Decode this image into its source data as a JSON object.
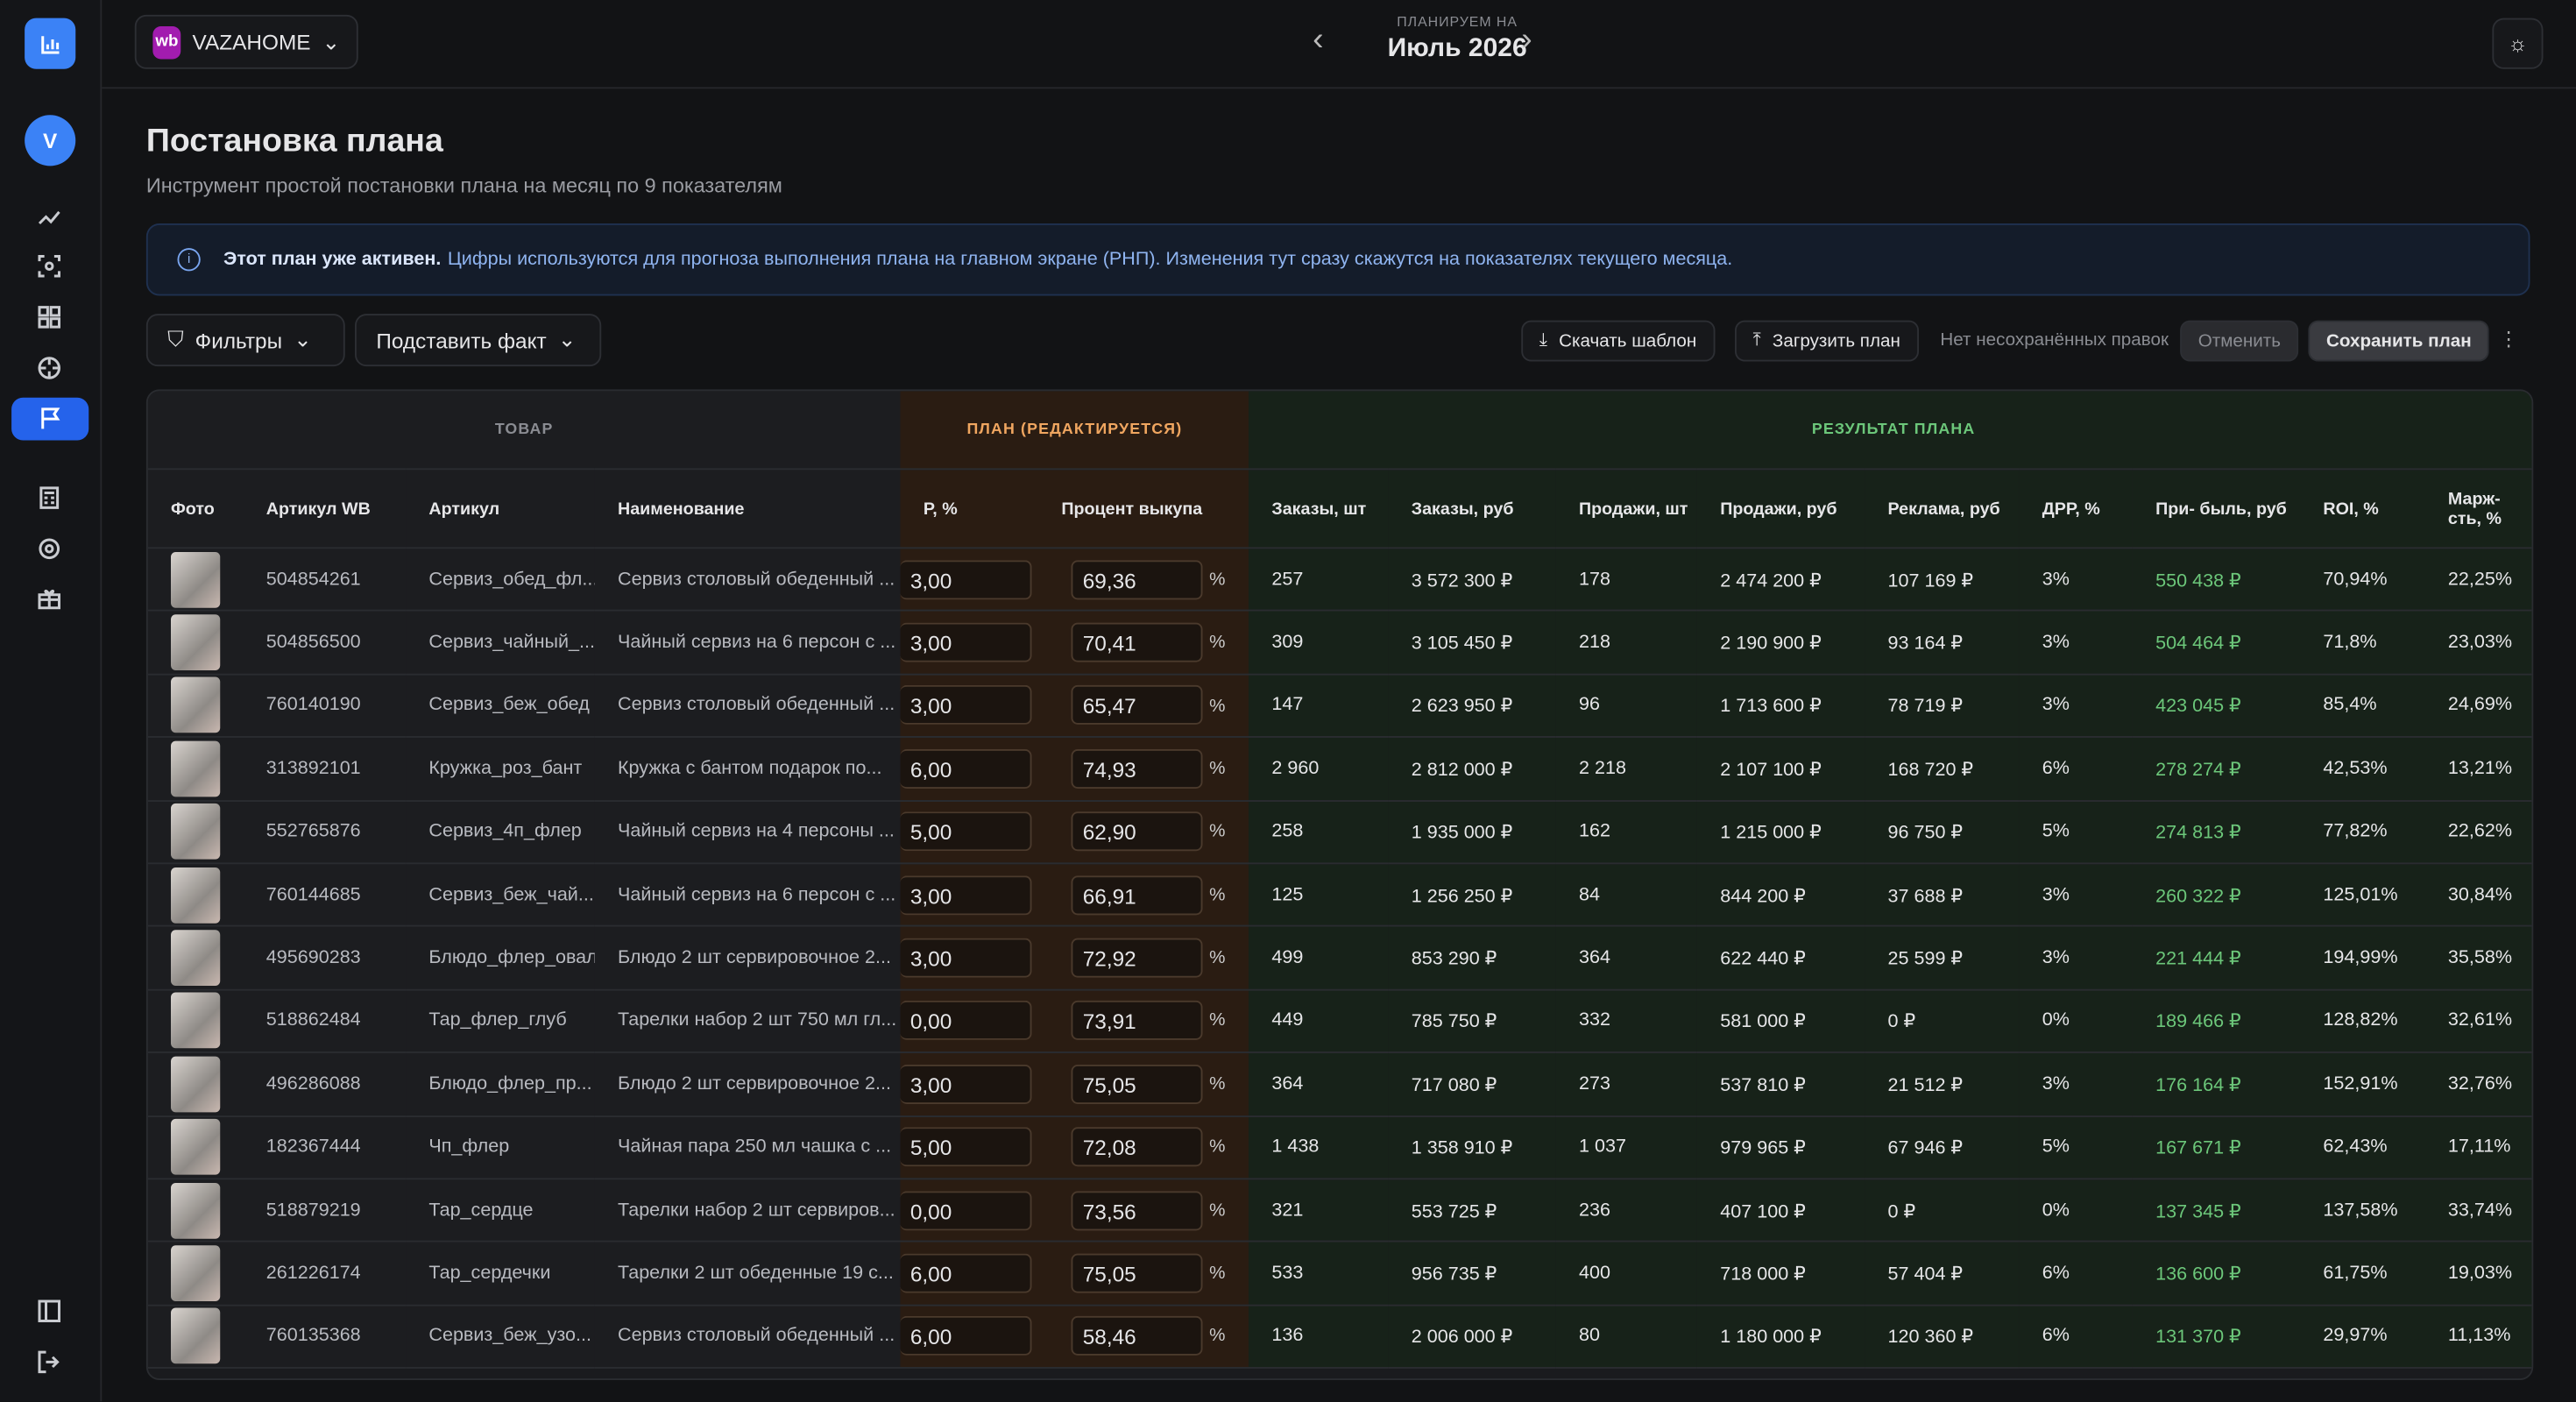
{
  "header": {
    "brand": "VAZAHOME",
    "plan_label": "ПЛАНИРУЕМ НА",
    "period": "Июль 2026"
  },
  "page": {
    "title": "Постановка плана",
    "subtitle": "Инструмент простой постановки плана на месяц по 9 показателям"
  },
  "notice": {
    "bold": "Этот план уже активен.",
    "text": "Цифры используются для прогноза выполнения плана на главном экране (РНП). Изменения тут сразу скажутся на показателях текущего месяца."
  },
  "toolbar": {
    "filters": "Фильтры",
    "substitute": "Подставить факт",
    "download": "Скачать шаблон",
    "upload": "Загрузить план",
    "status": "Нет несохранённых правок",
    "cancel": "Отменить",
    "save": "Сохранить план"
  },
  "table": {
    "groups": [
      "ТОВАР",
      "ПЛАН (РЕДАКТИРУЕТСЯ)",
      "РЕЗУЛЬТАТ ПЛАНА"
    ],
    "columns": [
      "Фото",
      "Артикул WB",
      "Артикул",
      "Наименование",
      "Р, %",
      "Процент выкупа",
      "Заказы, шт",
      "Заказы, руб",
      "Продажи, шт",
      "Продажи, руб",
      "Реклама, руб",
      "ДРР, %",
      "При- быль, руб",
      "ROI, %",
      "Марж- сть, %"
    ],
    "input_unit": "%",
    "rows": [
      [
        "504854261",
        "Сервиз_обед_фл...",
        "Сервиз столовый обеденный ...",
        "3,00",
        "69,36",
        "257",
        "3 572 300 ₽",
        "178",
        "2 474 200 ₽",
        "107 169 ₽",
        "3%",
        "550 438 ₽",
        "70,94%",
        "22,25%"
      ],
      [
        "504856500",
        "Сервиз_чайный_...",
        "Чайный сервиз на 6 персон с ...",
        "3,00",
        "70,41",
        "309",
        "3 105 450 ₽",
        "218",
        "2 190 900 ₽",
        "93 164 ₽",
        "3%",
        "504 464 ₽",
        "71,8%",
        "23,03%"
      ],
      [
        "760140190",
        "Сервиз_беж_обед",
        "Сервиз столовый обеденный ...",
        "3,00",
        "65,47",
        "147",
        "2 623 950 ₽",
        "96",
        "1 713 600 ₽",
        "78 719 ₽",
        "3%",
        "423 045 ₽",
        "85,4%",
        "24,69%"
      ],
      [
        "313892101",
        "Кружка_роз_бант",
        "Кружка с бантом подарок по...",
        "6,00",
        "74,93",
        "2 960",
        "2 812 000 ₽",
        "2 218",
        "2 107 100 ₽",
        "168 720 ₽",
        "6%",
        "278 274 ₽",
        "42,53%",
        "13,21%"
      ],
      [
        "552765876",
        "Сервиз_4п_флер",
        "Чайный сервиз на 4 персоны ...",
        "5,00",
        "62,90",
        "258",
        "1 935 000 ₽",
        "162",
        "1 215 000 ₽",
        "96 750 ₽",
        "5%",
        "274 813 ₽",
        "77,82%",
        "22,62%"
      ],
      [
        "760144685",
        "Сервиз_беж_чай...",
        "Чайный сервиз на 6 персон с ...",
        "3,00",
        "66,91",
        "125",
        "1 256 250 ₽",
        "84",
        "844 200 ₽",
        "37 688 ₽",
        "3%",
        "260 322 ₽",
        "125,01%",
        "30,84%"
      ],
      [
        "495690283",
        "Блюдо_флер_овал",
        "Блюдо 2 шт сервировочное 2...",
        "3,00",
        "72,92",
        "499",
        "853 290 ₽",
        "364",
        "622 440 ₽",
        "25 599 ₽",
        "3%",
        "221 444 ₽",
        "194,99%",
        "35,58%"
      ],
      [
        "518862484",
        "Тар_флер_глуб",
        "Тарелки набор 2 шт 750 мл гл...",
        "0,00",
        "73,91",
        "449",
        "785 750 ₽",
        "332",
        "581 000 ₽",
        "0 ₽",
        "0%",
        "189 466 ₽",
        "128,82%",
        "32,61%"
      ],
      [
        "496286088",
        "Блюдо_флер_пр...",
        "Блюдо 2 шт сервировочное 2...",
        "3,00",
        "75,05",
        "364",
        "717 080 ₽",
        "273",
        "537 810 ₽",
        "21 512 ₽",
        "3%",
        "176 164 ₽",
        "152,91%",
        "32,76%"
      ],
      [
        "182367444",
        "Чп_флер",
        "Чайная пара 250 мл чашка с ...",
        "5,00",
        "72,08",
        "1 438",
        "1 358 910 ₽",
        "1 037",
        "979 965 ₽",
        "67 946 ₽",
        "5%",
        "167 671 ₽",
        "62,43%",
        "17,11%"
      ],
      [
        "518879219",
        "Тар_сердце",
        "Тарелки набор 2 шт сервиров...",
        "0,00",
        "73,56",
        "321",
        "553 725 ₽",
        "236",
        "407 100 ₽",
        "0 ₽",
        "0%",
        "137 345 ₽",
        "137,58%",
        "33,74%"
      ],
      [
        "261226174",
        "Тар_сердечки",
        "Тарелки 2 шт обеденные 19 с...",
        "6,00",
        "75,05",
        "533",
        "956 735 ₽",
        "400",
        "718 000 ₽",
        "57 404 ₽",
        "6%",
        "136 600 ₽",
        "61,75%",
        "19,03%"
      ],
      [
        "760135368",
        "Сервиз_беж_узо...",
        "Сервиз столовый обеденный ...",
        "6,00",
        "58,46",
        "136",
        "2 006 000 ₽",
        "80",
        "1 180 000 ₽",
        "120 360 ₽",
        "6%",
        "131 370 ₽",
        "29,97%",
        "11,13%"
      ]
    ]
  }
}
